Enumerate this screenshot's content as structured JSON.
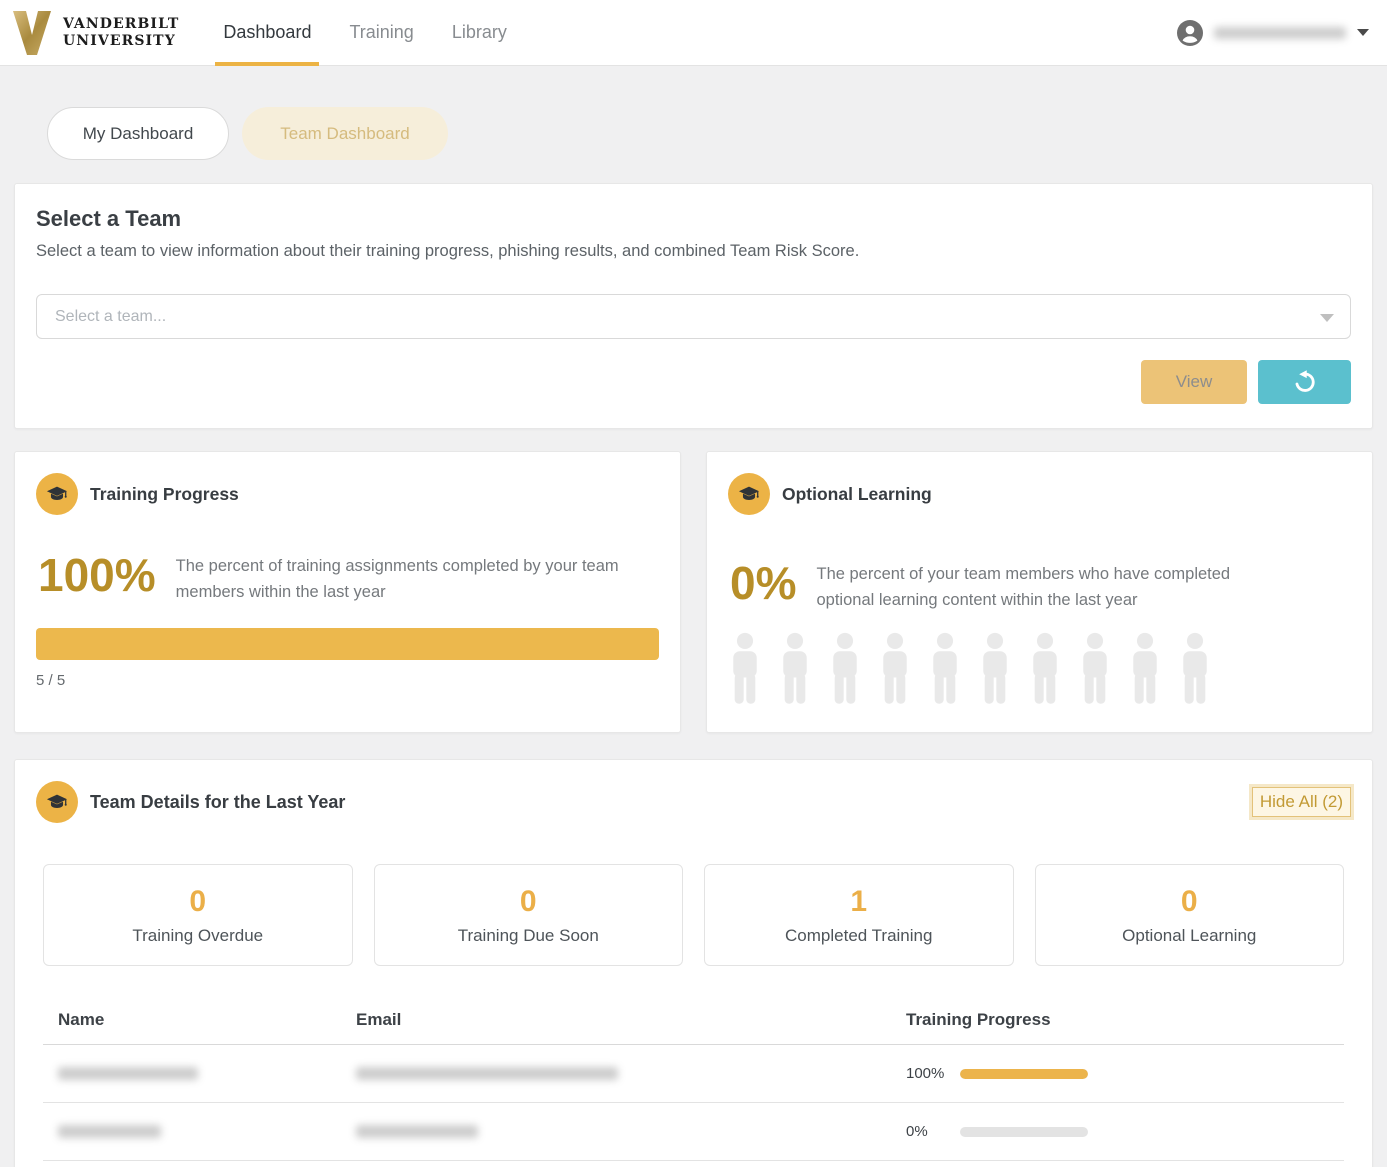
{
  "colors": {
    "gold_accent": "#ECB44C",
    "gold_dark": "#B78E28",
    "teal": "#5BC0CE",
    "cream_pill": "#F6EEDA",
    "view_button": "#ECC377"
  },
  "header": {
    "logo": {
      "initial": "V",
      "wordmark_line1": "VANDERBILT",
      "wordmark_line2": "UNIVERSITY"
    },
    "nav": [
      {
        "label": "Dashboard",
        "active": true
      },
      {
        "label": "Training",
        "active": false
      },
      {
        "label": "Library",
        "active": false
      }
    ],
    "user": {
      "name_redacted": true
    }
  },
  "dashboard_tabs": {
    "my_label": "My Dashboard",
    "team_label": "Team Dashboard"
  },
  "select_team": {
    "title": "Select a Team",
    "description": "Select a team to view information about their training progress, phishing results, and combined Team Risk Score.",
    "dropdown_placeholder": "Select a team...",
    "view_label": "View"
  },
  "training_progress": {
    "title": "Training Progress",
    "percent": "100%",
    "bar_percent": 100,
    "description": "The percent of training assignments completed by your team members within the last year",
    "fraction": "5 / 5"
  },
  "optional_learning": {
    "title": "Optional Learning",
    "percent": "0%",
    "description": "The percent of your team members who have completed optional learning content within the last year",
    "people_total": 10,
    "people_filled": 0
  },
  "team_details": {
    "title": "Team Details for the Last Year",
    "hide_all_label": "Hide All (2)",
    "stats": [
      {
        "value": "0",
        "label": "Training Overdue"
      },
      {
        "value": "0",
        "label": "Training Due Soon"
      },
      {
        "value": "1",
        "label": "Completed Training"
      },
      {
        "value": "0",
        "label": "Optional Learning"
      }
    ],
    "table": {
      "columns": [
        "Name",
        "Email",
        "Training Progress"
      ],
      "rows": [
        {
          "name_redacted": true,
          "email_redacted": true,
          "progress": "100%",
          "progress_value": 100
        },
        {
          "name_redacted": true,
          "email_redacted": true,
          "progress": "0%",
          "progress_value": 0
        }
      ]
    }
  }
}
